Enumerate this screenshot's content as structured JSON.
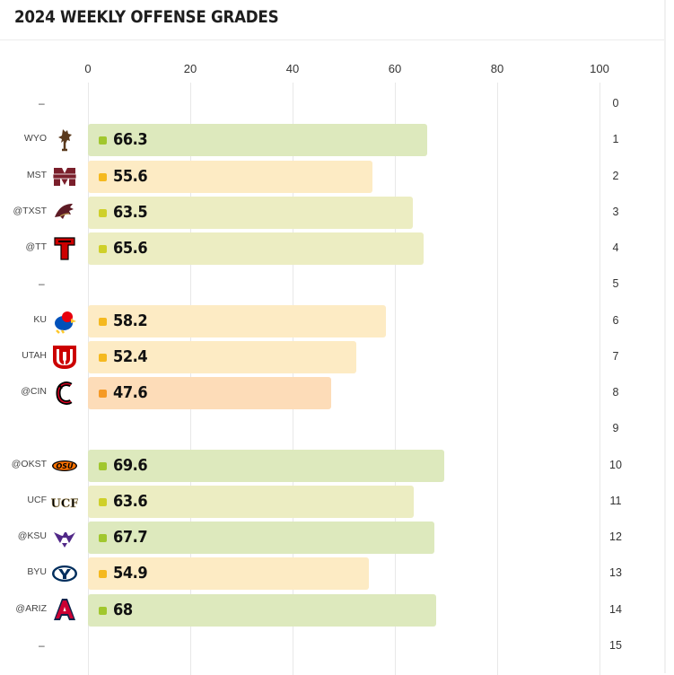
{
  "header": {
    "title": "2024 WEEKLY OFFENSE GRADES"
  },
  "colors": {
    "green_bar": "#dde9bd",
    "green_dot": "#a1c72e",
    "yellowgreen_bar": "#ecedc2",
    "yellowgreen_dot": "#cfd02a",
    "yellow_bar": "#fdebc4",
    "yellow_dot": "#f5b91f",
    "orange_bar": "#fddcb8",
    "orange_dot": "#f59a26"
  },
  "chart_data": {
    "type": "bar",
    "orientation": "horizontal",
    "title": "2024 WEEKLY OFFENSE GRADES",
    "xlim": [
      0,
      100
    ],
    "x_ticks": [
      "0",
      "20",
      "40",
      "60",
      "80",
      "100"
    ],
    "rows": [
      {
        "week": "0",
        "opponent": "–",
        "value": null,
        "logo": "none"
      },
      {
        "week": "1",
        "opponent": "WYO",
        "value": 66.3,
        "grade_text": "66.3",
        "tier": "green",
        "logo": "wyo-logo"
      },
      {
        "week": "2",
        "opponent": "MST",
        "value": 55.6,
        "grade_text": "55.6",
        "tier": "yellow",
        "logo": "mst-logo"
      },
      {
        "week": "3",
        "opponent": "@TXST",
        "value": 63.5,
        "grade_text": "63.5",
        "tier": "yellowgreen",
        "logo": "txst-logo"
      },
      {
        "week": "4",
        "opponent": "@TT",
        "value": 65.6,
        "grade_text": "65.6",
        "tier": "yellowgreen",
        "logo": "tt-logo"
      },
      {
        "week": "5",
        "opponent": "–",
        "value": null,
        "logo": "none"
      },
      {
        "week": "6",
        "opponent": "KU",
        "value": 58.2,
        "grade_text": "58.2",
        "tier": "yellow",
        "logo": "ku-logo"
      },
      {
        "week": "7",
        "opponent": "UTAH",
        "value": 52.4,
        "grade_text": "52.4",
        "tier": "yellow",
        "logo": "utah-logo"
      },
      {
        "week": "8",
        "opponent": "@CIN",
        "value": 47.6,
        "grade_text": "47.6",
        "tier": "orange",
        "logo": "cin-logo"
      },
      {
        "week": "9",
        "opponent": "",
        "value": null,
        "logo": "none"
      },
      {
        "week": "10",
        "opponent": "@OKST",
        "value": 69.6,
        "grade_text": "69.6",
        "tier": "green",
        "logo": "okst-logo"
      },
      {
        "week": "11",
        "opponent": "UCF",
        "value": 63.6,
        "grade_text": "63.6",
        "tier": "yellowgreen",
        "logo": "ucf-logo"
      },
      {
        "week": "12",
        "opponent": "@KSU",
        "value": 67.7,
        "grade_text": "67.7",
        "tier": "green",
        "logo": "ksu-logo"
      },
      {
        "week": "13",
        "opponent": "BYU",
        "value": 54.9,
        "grade_text": "54.9",
        "tier": "yellow",
        "logo": "byu-logo"
      },
      {
        "week": "14",
        "opponent": "@ARIZ",
        "value": 68.0,
        "grade_text": "68",
        "tier": "green",
        "logo": "ariz-logo"
      },
      {
        "week": "15",
        "opponent": "–",
        "value": null,
        "logo": "none"
      }
    ]
  }
}
